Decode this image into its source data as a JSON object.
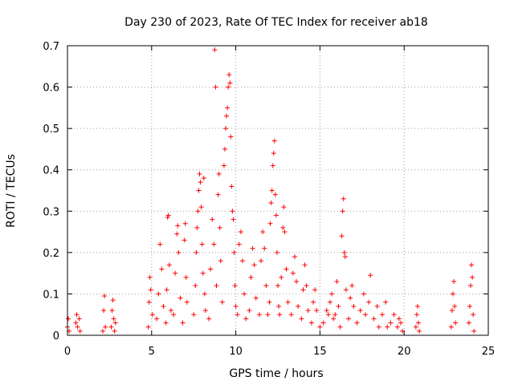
{
  "chart_data": {
    "type": "scatter",
    "title": "Day 230 of 2023, Rate Of TEC Index for receiver ab18",
    "xlabel": "GPS time / hours",
    "ylabel": "ROTI / TECUs",
    "xlim": [
      0,
      25
    ],
    "ylim": [
      0,
      0.7
    ],
    "x_ticks": [
      "0",
      "5",
      "10",
      "15",
      "20",
      "25"
    ],
    "y_ticks": [
      "0",
      "0.1",
      "0.2",
      "0.3",
      "0.4",
      "0.5",
      "0.6",
      "0.7"
    ],
    "grid": true,
    "marker": "+",
    "color": "#ff0000",
    "points": [
      [
        0.0,
        0.02
      ],
      [
        0.05,
        0.04
      ],
      [
        0.1,
        0.01
      ],
      [
        0.5,
        0.03
      ],
      [
        0.55,
        0.05
      ],
      [
        0.6,
        0.02
      ],
      [
        0.7,
        0.04
      ],
      [
        0.75,
        0.01
      ],
      [
        2.1,
        0.01
      ],
      [
        2.15,
        0.06
      ],
      [
        2.2,
        0.095
      ],
      [
        2.25,
        0.02
      ],
      [
        2.6,
        0.02
      ],
      [
        2.65,
        0.06
      ],
      [
        2.7,
        0.085
      ],
      [
        2.75,
        0.04
      ],
      [
        2.8,
        0.01
      ],
      [
        2.85,
        0.03
      ],
      [
        4.8,
        0.02
      ],
      [
        4.85,
        0.08
      ],
      [
        4.9,
        0.14
      ],
      [
        4.95,
        0.11
      ],
      [
        5.05,
        0.05
      ],
      [
        5.3,
        0.04
      ],
      [
        5.4,
        0.1
      ],
      [
        5.5,
        0.22
      ],
      [
        5.6,
        0.16
      ],
      [
        5.7,
        0.07
      ],
      [
        5.85,
        0.03
      ],
      [
        5.9,
        0.11
      ],
      [
        5.95,
        0.285
      ],
      [
        6.0,
        0.29
      ],
      [
        6.05,
        0.17
      ],
      [
        6.15,
        0.06
      ],
      [
        6.3,
        0.05
      ],
      [
        6.4,
        0.15
      ],
      [
        6.5,
        0.245
      ],
      [
        6.55,
        0.265
      ],
      [
        6.6,
        0.2
      ],
      [
        6.7,
        0.09
      ],
      [
        6.85,
        0.03
      ],
      [
        6.95,
        0.23
      ],
      [
        7.0,
        0.27
      ],
      [
        7.05,
        0.14
      ],
      [
        7.1,
        0.08
      ],
      [
        7.5,
        0.05
      ],
      [
        7.6,
        0.12
      ],
      [
        7.65,
        0.2
      ],
      [
        7.7,
        0.26
      ],
      [
        7.75,
        0.3
      ],
      [
        7.8,
        0.35
      ],
      [
        7.85,
        0.39
      ],
      [
        7.9,
        0.37
      ],
      [
        7.95,
        0.31
      ],
      [
        8.0,
        0.22
      ],
      [
        8.05,
        0.15
      ],
      [
        8.1,
        0.38
      ],
      [
        8.15,
        0.1
      ],
      [
        8.2,
        0.06
      ],
      [
        8.4,
        0.04
      ],
      [
        8.5,
        0.16
      ],
      [
        8.6,
        0.28
      ],
      [
        8.7,
        0.22
      ],
      [
        8.75,
        0.69
      ],
      [
        8.8,
        0.6
      ],
      [
        8.85,
        0.12
      ],
      [
        8.95,
        0.34
      ],
      [
        9.0,
        0.39
      ],
      [
        9.05,
        0.26
      ],
      [
        9.1,
        0.18
      ],
      [
        9.2,
        0.08
      ],
      [
        9.3,
        0.41
      ],
      [
        9.35,
        0.45
      ],
      [
        9.4,
        0.5
      ],
      [
        9.45,
        0.53
      ],
      [
        9.5,
        0.55
      ],
      [
        9.55,
        0.6
      ],
      [
        9.6,
        0.63
      ],
      [
        9.65,
        0.61
      ],
      [
        9.7,
        0.48
      ],
      [
        9.75,
        0.36
      ],
      [
        9.8,
        0.3
      ],
      [
        9.85,
        0.28
      ],
      [
        9.9,
        0.2
      ],
      [
        9.95,
        0.12
      ],
      [
        10.0,
        0.07
      ],
      [
        10.1,
        0.05
      ],
      [
        10.2,
        0.22
      ],
      [
        10.3,
        0.25
      ],
      [
        10.4,
        0.18
      ],
      [
        10.5,
        0.1
      ],
      [
        10.6,
        0.04
      ],
      [
        10.8,
        0.06
      ],
      [
        10.9,
        0.14
      ],
      [
        11.0,
        0.21
      ],
      [
        11.1,
        0.17
      ],
      [
        11.2,
        0.09
      ],
      [
        11.4,
        0.05
      ],
      [
        11.5,
        0.18
      ],
      [
        11.6,
        0.25
      ],
      [
        11.7,
        0.21
      ],
      [
        11.8,
        0.12
      ],
      [
        11.9,
        0.05
      ],
      [
        12.0,
        0.08
      ],
      [
        12.05,
        0.27
      ],
      [
        12.1,
        0.32
      ],
      [
        12.15,
        0.35
      ],
      [
        12.2,
        0.41
      ],
      [
        12.25,
        0.44
      ],
      [
        12.3,
        0.47
      ],
      [
        12.35,
        0.34
      ],
      [
        12.4,
        0.29
      ],
      [
        12.45,
        0.2
      ],
      [
        12.5,
        0.12
      ],
      [
        12.55,
        0.07
      ],
      [
        12.6,
        0.05
      ],
      [
        12.7,
        0.14
      ],
      [
        12.8,
        0.26
      ],
      [
        12.85,
        0.31
      ],
      [
        12.9,
        0.25
      ],
      [
        13.0,
        0.16
      ],
      [
        13.1,
        0.08
      ],
      [
        13.3,
        0.05
      ],
      [
        13.4,
        0.15
      ],
      [
        13.5,
        0.19
      ],
      [
        13.6,
        0.13
      ],
      [
        13.7,
        0.07
      ],
      [
        13.9,
        0.04
      ],
      [
        14.0,
        0.11
      ],
      [
        14.1,
        0.17
      ],
      [
        14.2,
        0.12
      ],
      [
        14.3,
        0.06
      ],
      [
        14.5,
        0.03
      ],
      [
        14.6,
        0.08
      ],
      [
        14.7,
        0.11
      ],
      [
        14.8,
        0.06
      ],
      [
        15.0,
        0.02
      ],
      [
        15.2,
        0.03
      ],
      [
        15.4,
        0.06
      ],
      [
        15.5,
        0.05
      ],
      [
        15.6,
        0.08
      ],
      [
        15.7,
        0.1
      ],
      [
        15.8,
        0.04
      ],
      [
        15.9,
        0.05
      ],
      [
        16.0,
        0.13
      ],
      [
        16.1,
        0.07
      ],
      [
        16.2,
        0.02
      ],
      [
        16.3,
        0.24
      ],
      [
        16.35,
        0.3
      ],
      [
        16.4,
        0.33
      ],
      [
        16.45,
        0.2
      ],
      [
        16.5,
        0.19
      ],
      [
        16.55,
        0.11
      ],
      [
        16.7,
        0.04
      ],
      [
        16.8,
        0.09
      ],
      [
        16.9,
        0.12
      ],
      [
        17.0,
        0.07
      ],
      [
        17.2,
        0.03
      ],
      [
        17.4,
        0.06
      ],
      [
        17.6,
        0.1
      ],
      [
        17.7,
        0.05
      ],
      [
        17.9,
        0.08
      ],
      [
        18.0,
        0.145
      ],
      [
        18.2,
        0.04
      ],
      [
        18.4,
        0.07
      ],
      [
        18.5,
        0.02
      ],
      [
        18.7,
        0.05
      ],
      [
        18.9,
        0.08
      ],
      [
        19.0,
        0.02
      ],
      [
        19.2,
        0.03
      ],
      [
        19.4,
        0.05
      ],
      [
        19.6,
        0.02
      ],
      [
        19.7,
        0.04
      ],
      [
        19.8,
        0.03
      ],
      [
        19.9,
        0.01
      ],
      [
        20.7,
        0.02
      ],
      [
        20.75,
        0.05
      ],
      [
        20.8,
        0.07
      ],
      [
        20.85,
        0.03
      ],
      [
        20.9,
        0.01
      ],
      [
        22.8,
        0.02
      ],
      [
        22.85,
        0.06
      ],
      [
        22.9,
        0.1
      ],
      [
        22.95,
        0.13
      ],
      [
        23.0,
        0.07
      ],
      [
        23.05,
        0.03
      ],
      [
        23.85,
        0.03
      ],
      [
        23.9,
        0.07
      ],
      [
        23.95,
        0.12
      ],
      [
        24.0,
        0.17
      ],
      [
        24.05,
        0.14
      ],
      [
        24.1,
        0.05
      ],
      [
        24.15,
        0.01
      ]
    ]
  }
}
